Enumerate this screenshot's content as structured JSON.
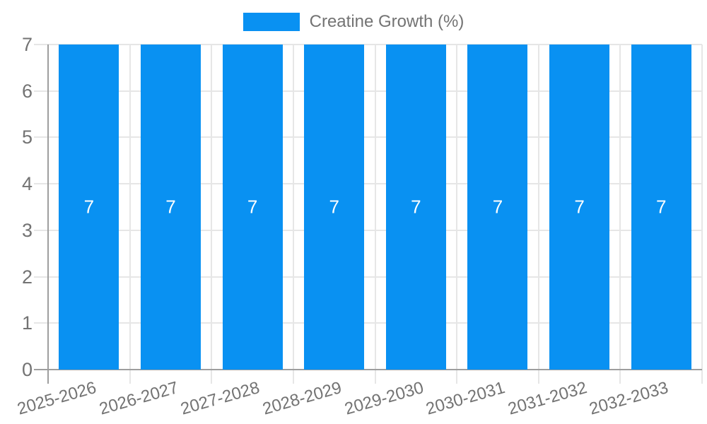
{
  "chart_data": {
    "type": "bar",
    "legend": {
      "label": "Creatine Growth (%)",
      "position": "top"
    },
    "categories": [
      "2025-2026",
      "2026-2027",
      "2027-2028",
      "2028-2029",
      "2029-2030",
      "2030-2031",
      "2031-2032",
      "2032-2033"
    ],
    "series": [
      {
        "name": "Creatine Growth (%)",
        "values": [
          7,
          7,
          7,
          7,
          7,
          7,
          7,
          7
        ]
      }
    ],
    "data_labels": [
      "7",
      "7",
      "7",
      "7",
      "7",
      "7",
      "7",
      "7"
    ],
    "xlabel": "",
    "ylabel": "",
    "ylim": [
      0,
      7
    ],
    "yticks": [
      0,
      1,
      2,
      3,
      4,
      5,
      6,
      7
    ],
    "grid": true,
    "x_label_rotation_deg": -16,
    "colors": {
      "bar": "#0991f2",
      "grid": "#e6e6e6",
      "axis": "#9e9e9e",
      "text": "#737373",
      "data_label": "#ffffff",
      "background": "#ffffff"
    }
  }
}
